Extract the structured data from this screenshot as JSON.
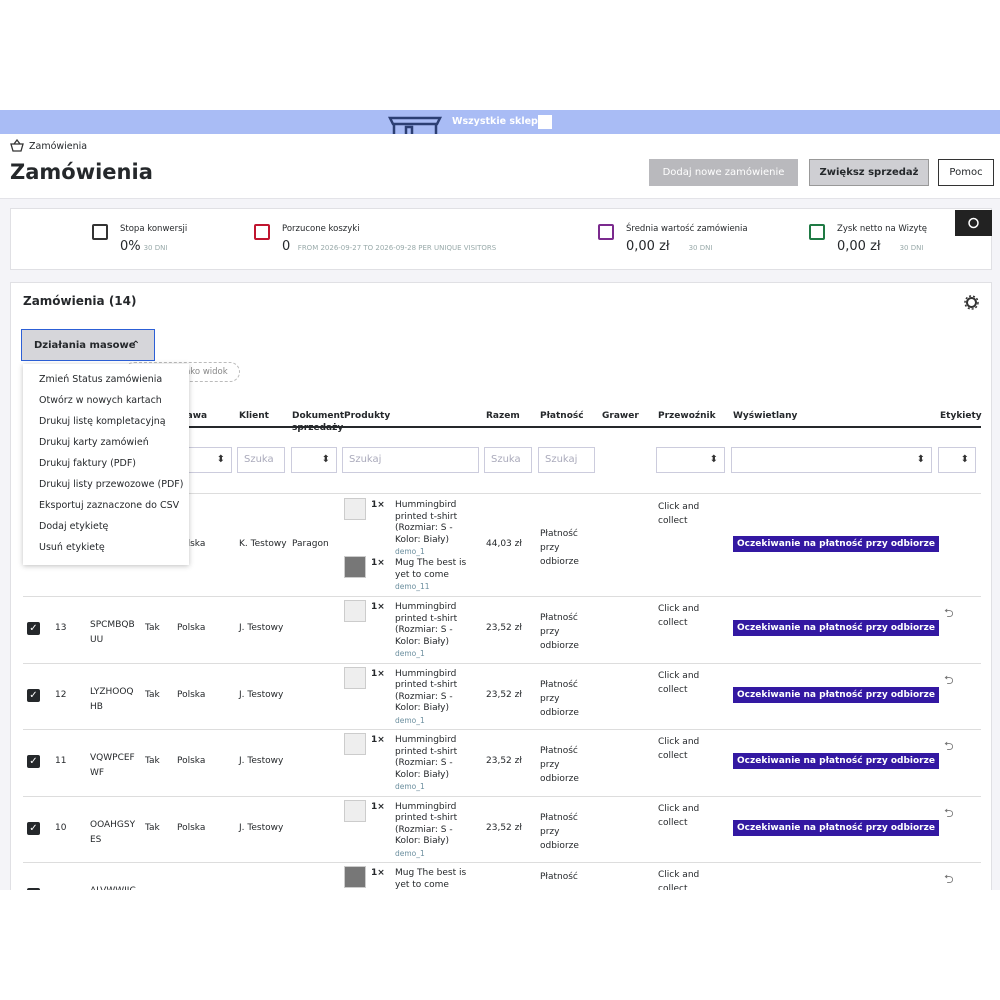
{
  "store_bar": "Wszystkie sklepy",
  "breadcrumb": "Zamówienia",
  "page_title": "Zamówienia",
  "toolbar": [
    "Dodaj nowe zamówienie",
    "Zwiększ sprzedaż",
    "Pomoc"
  ],
  "kpis": [
    {
      "label": "Stopa konwersji",
      "value": "0%",
      "period": "30 DNI"
    },
    {
      "label": "Porzucone koszyki",
      "value": "0",
      "period": "FROM 2026-09-27 TO 2026-09-28 PER UNIQUE VISITORS"
    },
    {
      "label": "Średnia wartość zamówienia",
      "value": "0,00 zł",
      "period": "30 DNI"
    },
    {
      "label": "Zysk netto na Wizytę",
      "value": "0,00 zł",
      "period": "30 DNI"
    }
  ],
  "panel_title": "Zamówienia (14)",
  "bulk_button": "Działania masowe",
  "bulk_menu": [
    "Zmień Status zamówienia",
    "Otwórz w nowych kartach",
    "Drukuj listę kompletacyjną",
    "Drukuj karty zamówień",
    "Drukuj faktury (PDF)",
    "Drukuj listy przewozowe (PDF)",
    "Eksportuj zaznaczone do CSV",
    "Dodaj etykietę",
    "Usuń etykietę"
  ],
  "view_chip": "y jako widok",
  "columns": [
    "stawa",
    "Klient",
    "Dokument sprzedaży",
    "Produkty",
    "Razem",
    "Płatność",
    "Grawer",
    "Przewoźnik",
    "Wyświetlany",
    "Etykiety"
  ],
  "filters": [
    "Szuka",
    "Szukaj",
    "Szuka",
    "Szukaj"
  ],
  "rows": [
    {
      "country": "Polska",
      "client": "K. Testowy",
      "document": "Paragon",
      "total": "44,03 zł",
      "payment": "Płatność przy odbiorze",
      "carrier": "Click and collect",
      "status": "Oczekiwanie na płatność przy odbiorze",
      "products": [
        {
          "qty": "1×",
          "name": "Hummingbird printed t-shirt (Rozmiar: S - Kolor: Biały)",
          "ref": "demo_1"
        },
        {
          "qty": "1×",
          "name": "Mug The best is yet to come",
          "ref": "demo_11"
        }
      ]
    },
    {
      "id": "13",
      "reference": "SPCMBQBUU",
      "new": "Tak",
      "country": "Polska",
      "client": "J. Testowy",
      "total": "23,52 zł",
      "payment": "Płatność przy odbiorze",
      "carrier": "Click and collect",
      "status": "Oczekiwanie na płatność przy odbiorze",
      "products": [
        {
          "qty": "1×",
          "name": "Hummingbird printed t-shirt (Rozmiar: S - Kolor: Biały)",
          "ref": "demo_1"
        }
      ]
    },
    {
      "id": "12",
      "reference": "LYZHOOQHB",
      "new": "Tak",
      "country": "Polska",
      "client": "J. Testowy",
      "total": "23,52 zł",
      "payment": "Płatność przy odbiorze",
      "carrier": "Click and collect",
      "status": "Oczekiwanie na płatność przy odbiorze",
      "products": [
        {
          "qty": "1×",
          "name": "Hummingbird printed t-shirt (Rozmiar: S - Kolor: Biały)",
          "ref": "demo_1"
        }
      ]
    },
    {
      "id": "11",
      "reference": "VQWPCEFWF",
      "new": "Tak",
      "country": "Polska",
      "client": "J. Testowy",
      "total": "23,52 zł",
      "payment": "Płatność przy odbiorze",
      "carrier": "Click and collect",
      "status": "Oczekiwanie na płatność przy odbiorze",
      "products": [
        {
          "qty": "1×",
          "name": "Hummingbird printed t-shirt (Rozmiar: S - Kolor: Biały)",
          "ref": "demo_1"
        }
      ]
    },
    {
      "id": "10",
      "reference": "OOAHGSYES",
      "new": "Tak",
      "country": "Polska",
      "client": "J. Testowy",
      "total": "23,52 zł",
      "payment": "Płatność przy odbiorze",
      "carrier": "Click and collect",
      "status": "Oczekiwanie na płatność przy odbiorze",
      "products": [
        {
          "qty": "1×",
          "name": "Hummingbird printed t-shirt (Rozmiar: S - Kolor: Biały)",
          "ref": "demo_1"
        }
      ]
    },
    {
      "reference": "ALVWWIJC",
      "payment": "Płatność",
      "carrier": "Click and collect",
      "products": [
        {
          "qty": "1×",
          "name": "Mug The best is yet to come"
        }
      ]
    }
  ]
}
